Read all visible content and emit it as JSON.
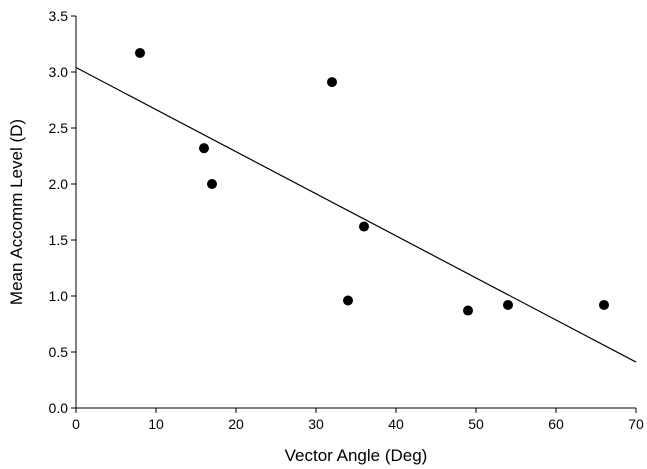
{
  "chart_data": {
    "type": "scatter",
    "xlabel": "Vector Angle (Deg)",
    "ylabel": "Mean Accomm Level (D)",
    "xlim": [
      0,
      70
    ],
    "ylim": [
      0,
      3.5
    ],
    "xticks": [
      "0",
      "10",
      "20",
      "30",
      "40",
      "50",
      "60",
      "70"
    ],
    "yticks": [
      "0.0",
      "0.5",
      "1.0",
      "1.5",
      "2.0",
      "2.5",
      "3.0",
      "3.5"
    ],
    "grid": false,
    "series": [
      {
        "points": [
          {
            "x": 8,
            "y": 3.17
          },
          {
            "x": 16,
            "y": 2.32
          },
          {
            "x": 17,
            "y": 2.0
          },
          {
            "x": 32,
            "y": 2.91
          },
          {
            "x": 34,
            "y": 0.96
          },
          {
            "x": 36,
            "y": 1.62
          },
          {
            "x": 49,
            "y": 0.87
          },
          {
            "x": 54,
            "y": 0.92
          },
          {
            "x": 66,
            "y": 0.92
          }
        ],
        "color": "#000000"
      }
    ],
    "trendline": {
      "x": [
        0,
        70
      ],
      "y": [
        3.04,
        0.41
      ],
      "color": "#000000"
    }
  }
}
